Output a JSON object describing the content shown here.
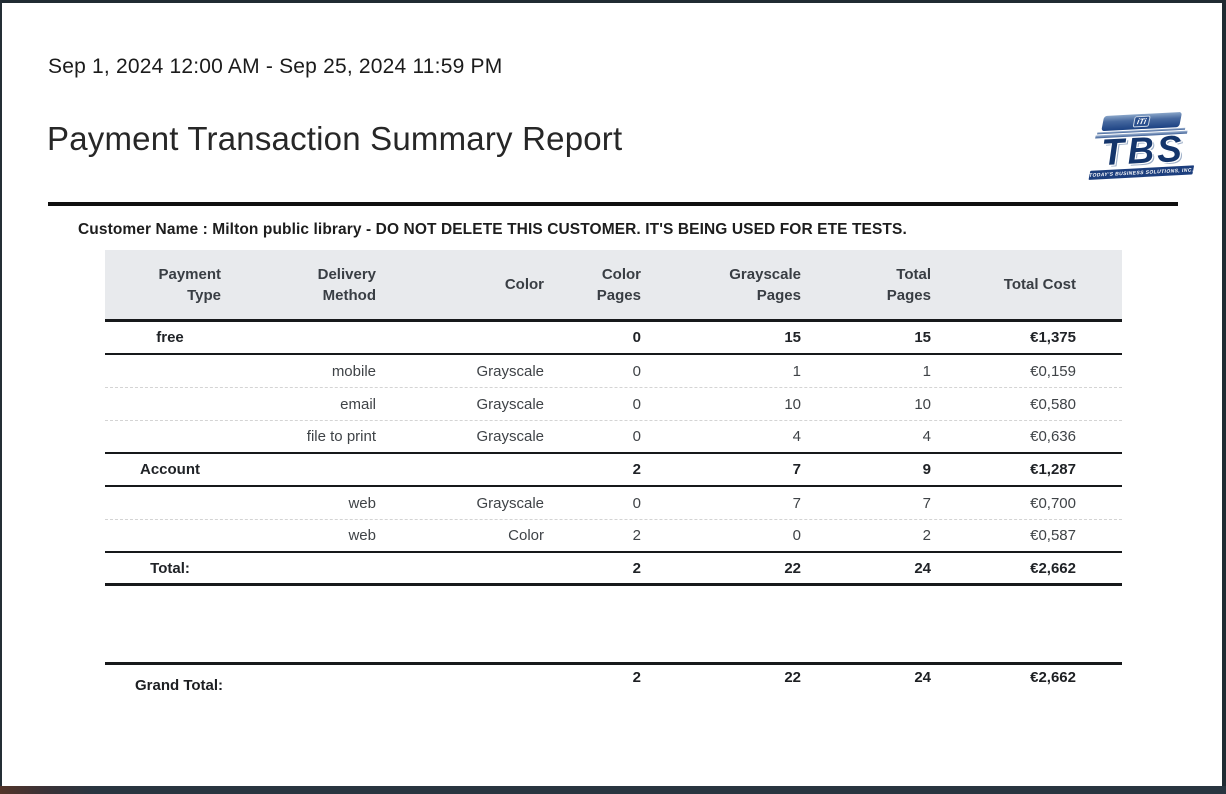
{
  "report": {
    "date_range": "Sep 1, 2024 12:00 AM - Sep 25, 2024 11:59 PM",
    "title": "Payment Transaction Summary Report",
    "customer_line": "Customer Name : Milton public library - DO NOT DELETE THIS CUSTOMER. IT'S BEING USED FOR ETE TESTS."
  },
  "logo": {
    "text": "TBS",
    "icon_text": "iTi",
    "tagline": "TODAY'S BUSINESS SOLUTIONS, INC.",
    "navy_color": "#14356b",
    "bar_color": "#1c3e7d"
  },
  "colors": {
    "header_background": "#e8eaed",
    "rule_black": "#0f0f0f",
    "bottom_bar": "#293540"
  },
  "table": {
    "columns": [
      [
        "Payment",
        "Type"
      ],
      [
        "Delivery",
        "Method"
      ],
      [
        "Color",
        ""
      ],
      [
        "Color",
        "Pages"
      ],
      [
        "Grayscale",
        "Pages"
      ],
      [
        "Total",
        "Pages"
      ],
      [
        "Total Cost",
        ""
      ]
    ],
    "rows": [
      [
        "free",
        "",
        "",
        "0",
        "15",
        "15",
        "€1,375"
      ],
      [
        "",
        "mobile",
        "Grayscale",
        "0",
        "1",
        "1",
        "€0,159"
      ],
      [
        "",
        "email",
        "Grayscale",
        "0",
        "10",
        "10",
        "€0,580"
      ],
      [
        "",
        "file to print",
        "Grayscale",
        "0",
        "4",
        "4",
        "€0,636"
      ],
      [
        "Account",
        "",
        "",
        "2",
        "7",
        "9",
        "€1,287"
      ],
      [
        "",
        "web",
        "Grayscale",
        "0",
        "7",
        "7",
        "€0,700"
      ],
      [
        "",
        "web",
        "Color",
        "2",
        "0",
        "2",
        "€0,587"
      ],
      [
        "Total:",
        "",
        "",
        "2",
        "22",
        "24",
        "€2,662"
      ]
    ],
    "grand_total": [
      "Grand Total:",
      "",
      "",
      "2",
      "22",
      "24",
      "€2,662"
    ]
  }
}
